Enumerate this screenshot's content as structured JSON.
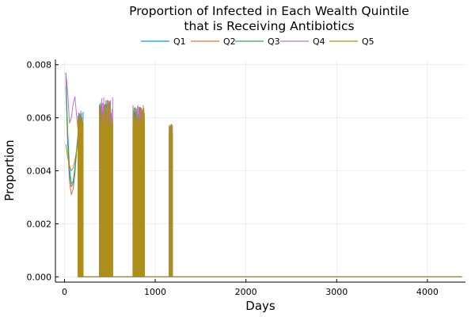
{
  "chart_data": {
    "type": "line",
    "title_line1": "Proportion of Infected in Each Wealth Quintile",
    "title_line2": "that is Receiving Antibiotics",
    "xlabel": "Days",
    "ylabel": "Proportion",
    "xlim": [
      -100,
      4420
    ],
    "ylim": [
      -0.0002,
      0.0082
    ],
    "xticks": [
      0,
      1000,
      2000,
      3000,
      4000
    ],
    "xtick_labels": [
      "0",
      "1000",
      "2000",
      "3000",
      "4000"
    ],
    "yticks": [
      0,
      0.002,
      0.004,
      0.006,
      0.008
    ],
    "ytick_labels": [
      "0.000",
      "0.002",
      "0.004",
      "0.006",
      "0.008"
    ],
    "grid": true,
    "legend_placement": "top-center",
    "x_end": 4380,
    "bursts": [
      {
        "start": 150,
        "end": 205,
        "min": 0.0052,
        "max": 0.0064
      },
      {
        "start": 385,
        "end": 530,
        "min": 0.005,
        "max": 0.0068
      },
      {
        "start": 755,
        "end": 880,
        "min": 0.0052,
        "max": 0.0065
      },
      {
        "start": 1155,
        "end": 1190,
        "min": 0.0052,
        "max": 0.0058
      }
    ],
    "series": [
      {
        "name": "Q1",
        "color": "#009AFA",
        "initial_curve": [
          [
            15,
            0.0077
          ],
          [
            35,
            0.0055
          ],
          [
            55,
            0.0041
          ],
          [
            75,
            0.0035
          ],
          [
            95,
            0.0036
          ],
          [
            115,
            0.0041
          ],
          [
            135,
            0.0049
          ],
          [
            150,
            0.0054
          ]
        ]
      },
      {
        "name": "Q2",
        "color": "#E36F47",
        "initial_curve": [
          [
            15,
            0.0075
          ],
          [
            35,
            0.005
          ],
          [
            55,
            0.0036
          ],
          [
            75,
            0.0031
          ],
          [
            95,
            0.0033
          ],
          [
            115,
            0.0039
          ],
          [
            135,
            0.0048
          ],
          [
            150,
            0.0054
          ]
        ]
      },
      {
        "name": "Q3",
        "color": "#3EA44E",
        "initial_curve": [
          [
            15,
            0.0072
          ],
          [
            35,
            0.0052
          ],
          [
            55,
            0.0039
          ],
          [
            75,
            0.0034
          ],
          [
            95,
            0.0035
          ],
          [
            115,
            0.004
          ],
          [
            135,
            0.0048
          ],
          [
            150,
            0.0053
          ]
        ]
      },
      {
        "name": "Q4",
        "color": "#C271D2",
        "initial_curve": [
          [
            15,
            0.0077
          ],
          [
            35,
            0.007
          ],
          [
            55,
            0.0058
          ],
          [
            75,
            0.006
          ],
          [
            95,
            0.0065
          ],
          [
            115,
            0.0068
          ],
          [
            135,
            0.006
          ],
          [
            150,
            0.0055
          ]
        ]
      },
      {
        "name": "Q5",
        "color": "#AC8E18",
        "initial_curve": [
          [
            15,
            0.005
          ],
          [
            35,
            0.0045
          ],
          [
            55,
            0.0042
          ],
          [
            75,
            0.004
          ],
          [
            95,
            0.0041
          ],
          [
            115,
            0.0044
          ],
          [
            135,
            0.0048
          ],
          [
            150,
            0.0052
          ]
        ]
      }
    ]
  }
}
